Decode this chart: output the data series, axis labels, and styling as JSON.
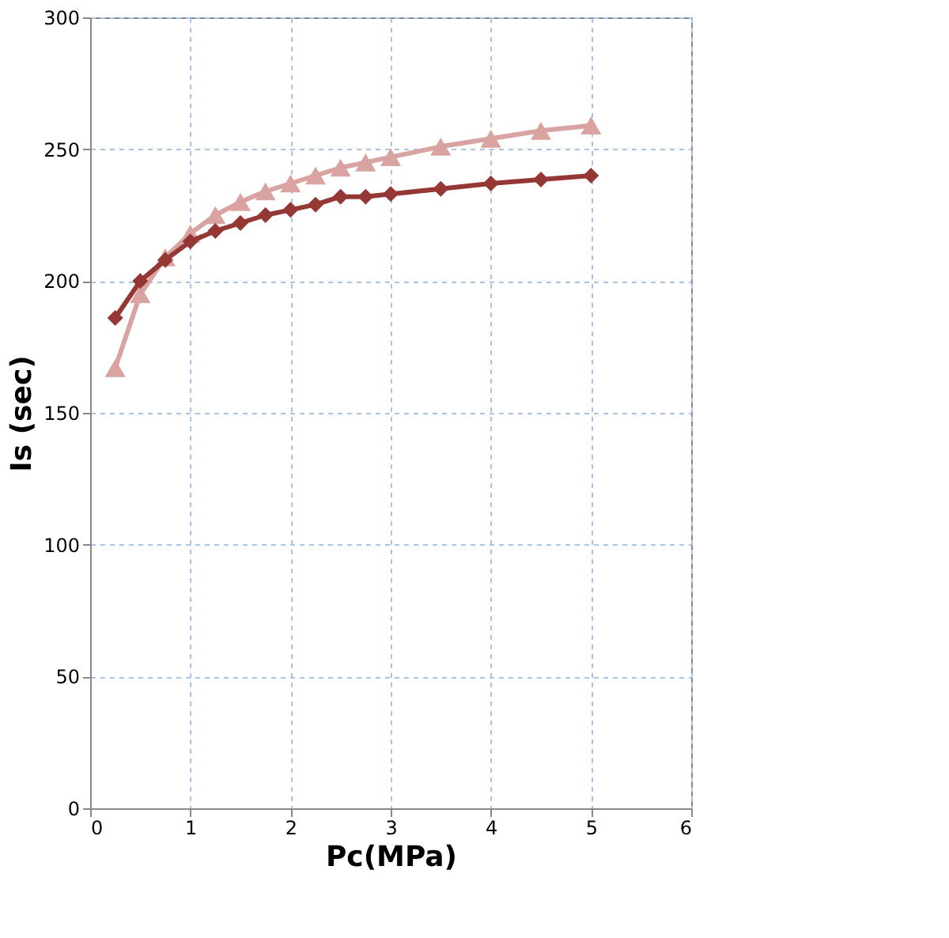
{
  "chart_data": {
    "type": "line",
    "xlabel": "Pc(MPa)",
    "ylabel": "Is (sec)",
    "xlim": [
      0,
      6
    ],
    "xticks": [
      0,
      1,
      2,
      3,
      4,
      5,
      6
    ],
    "ylim": [
      0,
      300
    ],
    "yticks": [
      0,
      50,
      100,
      150,
      200,
      250,
      300
    ],
    "grid": true,
    "line_style": "solid",
    "x": [
      0.25,
      0.5,
      0.75,
      1,
      1.25,
      1.5,
      1.75,
      2,
      2.25,
      2.5,
      2.75,
      3,
      3.5,
      4,
      4.5,
      5
    ],
    "series": [
      {
        "color": "#d9a3a1",
        "marker": "triangle",
        "values": [
          167,
          195,
          209,
          218,
          225,
          230,
          234,
          237,
          240,
          243,
          245,
          247,
          251,
          254,
          257,
          259
        ]
      },
      {
        "color": "#953735",
        "marker": "diamond",
        "values": [
          186,
          200,
          208,
          215,
          219,
          222,
          225,
          227,
          229,
          232,
          232,
          233,
          235,
          237,
          238.5,
          240
        ]
      }
    ]
  }
}
